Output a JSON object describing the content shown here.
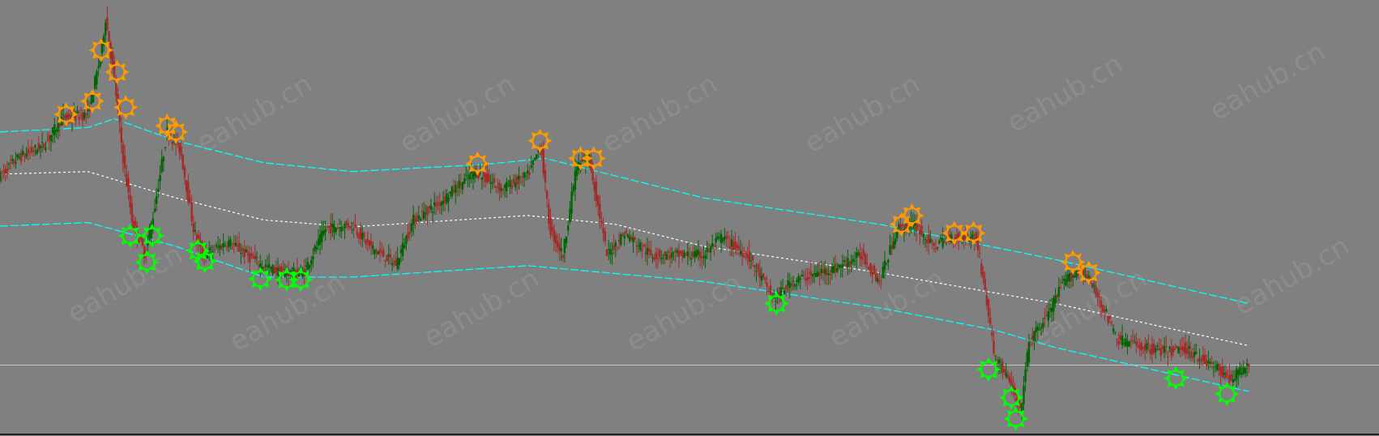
{
  "watermark": "eahub.cn",
  "chart_data": {
    "type": "candlestick",
    "title": "",
    "xlabel": "",
    "ylabel": "",
    "grid": false,
    "xlim": [
      0,
      1568
    ],
    "ylim": [
      0,
      100
    ],
    "colors": {
      "background": "#808080",
      "bull": "#006400",
      "bear": "#a52a2a",
      "band": "#00ffff",
      "middle": "#ffffff",
      "price_line": "#c0c0c0",
      "signal_high": "#ff9900",
      "signal_low": "#00ff00"
    },
    "price_path": [
      [
        0,
        60
      ],
      [
        20,
        64
      ],
      [
        50,
        67
      ],
      [
        70,
        73
      ],
      [
        100,
        74
      ],
      [
        115,
        88
      ],
      [
        120,
        96
      ],
      [
        130,
        82
      ],
      [
        140,
        64
      ],
      [
        150,
        50
      ],
      [
        165,
        42
      ],
      [
        175,
        52
      ],
      [
        190,
        70
      ],
      [
        205,
        66
      ],
      [
        220,
        48
      ],
      [
        230,
        42
      ],
      [
        260,
        45
      ],
      [
        295,
        40
      ],
      [
        320,
        38
      ],
      [
        345,
        38
      ],
      [
        370,
        48
      ],
      [
        400,
        49
      ],
      [
        420,
        44
      ],
      [
        450,
        40
      ],
      [
        470,
        50
      ],
      [
        500,
        54
      ],
      [
        540,
        61
      ],
      [
        570,
        57
      ],
      [
        600,
        60
      ],
      [
        615,
        67
      ],
      [
        625,
        48
      ],
      [
        640,
        42
      ],
      [
        655,
        62
      ],
      [
        670,
        64
      ],
      [
        690,
        42
      ],
      [
        710,
        47
      ],
      [
        740,
        42
      ],
      [
        800,
        42
      ],
      [
        820,
        46
      ],
      [
        850,
        42
      ],
      [
        880,
        32
      ],
      [
        900,
        36
      ],
      [
        950,
        39
      ],
      [
        980,
        42
      ],
      [
        1000,
        36
      ],
      [
        1020,
        48
      ],
      [
        1040,
        49
      ],
      [
        1060,
        44
      ],
      [
        1080,
        46
      ],
      [
        1110,
        46
      ],
      [
        1120,
        34
      ],
      [
        1130,
        20
      ],
      [
        1150,
        12
      ],
      [
        1160,
        6
      ],
      [
        1170,
        22
      ],
      [
        1190,
        28
      ],
      [
        1210,
        36
      ],
      [
        1230,
        39
      ],
      [
        1250,
        32
      ],
      [
        1270,
        23
      ],
      [
        1300,
        21
      ],
      [
        1330,
        20
      ],
      [
        1345,
        21
      ],
      [
        1370,
        18
      ],
      [
        1400,
        14
      ],
      [
        1420,
        17
      ]
    ],
    "upper_band": [
      [
        0,
        70
      ],
      [
        100,
        71
      ],
      [
        130,
        73
      ],
      [
        200,
        68
      ],
      [
        300,
        63
      ],
      [
        400,
        61
      ],
      [
        550,
        62.6
      ],
      [
        620,
        64
      ],
      [
        800,
        55
      ],
      [
        1000,
        49
      ],
      [
        1200,
        41
      ],
      [
        1420,
        31
      ]
    ],
    "middle_line": [
      [
        0,
        60.4
      ],
      [
        100,
        61
      ],
      [
        200,
        55
      ],
      [
        300,
        50
      ],
      [
        400,
        48.4
      ],
      [
        600,
        51
      ],
      [
        700,
        49
      ],
      [
        800,
        44
      ],
      [
        1000,
        38
      ],
      [
        1200,
        31
      ],
      [
        1420,
        21.4
      ]
    ],
    "lower_band": [
      [
        0,
        48.6
      ],
      [
        100,
        49.4
      ],
      [
        200,
        44
      ],
      [
        300,
        37
      ],
      [
        400,
        37
      ],
      [
        600,
        39.6
      ],
      [
        800,
        36
      ],
      [
        1000,
        30
      ],
      [
        1130,
        25
      ],
      [
        1200,
        21
      ],
      [
        1420,
        11
      ]
    ],
    "current_price": 17,
    "high_signals": [
      [
        75,
        74
      ],
      [
        105,
        77
      ],
      [
        115,
        88.6
      ],
      [
        133,
        83.6
      ],
      [
        143,
        75.6
      ],
      [
        190,
        71.4
      ],
      [
        200,
        70
      ],
      [
        543,
        62.8
      ],
      [
        614,
        68
      ],
      [
        660,
        64
      ],
      [
        675,
        64
      ],
      [
        1025,
        49
      ],
      [
        1037,
        51
      ],
      [
        1085,
        47
      ],
      [
        1107,
        47
      ],
      [
        1220,
        40.4
      ],
      [
        1238,
        38
      ]
    ],
    "low_signals": [
      [
        148,
        46.4
      ],
      [
        167,
        40.4
      ],
      [
        173,
        46.4
      ],
      [
        225,
        43
      ],
      [
        233,
        40.6
      ],
      [
        296,
        36.6
      ],
      [
        326,
        36.4
      ],
      [
        342,
        36.4
      ],
      [
        883,
        31
      ],
      [
        1124,
        16
      ],
      [
        1150,
        9.6
      ],
      [
        1155,
        4.8
      ],
      [
        1337,
        14
      ],
      [
        1395,
        10.4
      ]
    ]
  }
}
